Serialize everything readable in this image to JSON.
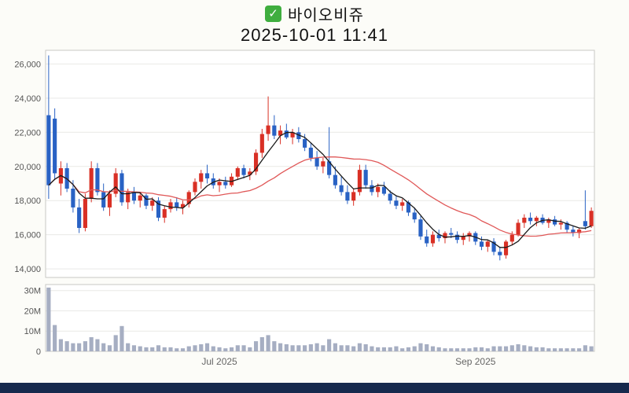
{
  "header": {
    "check_icon": "✓",
    "title": "바이오비쥬",
    "timestamp": "2025-10-01 11:41"
  },
  "chart_data": {
    "type": "candlestick",
    "title": "바이오비쥬",
    "timestamp": "2025-10-01 11:41",
    "ylim": [
      13500,
      26800
    ],
    "price_ticks": [
      {
        "label": "26,000",
        "value": 26000
      },
      {
        "label": "24,000",
        "value": 24000
      },
      {
        "label": "22,000",
        "value": 22000
      },
      {
        "label": "20,000",
        "value": 20000
      },
      {
        "label": "18,000",
        "value": 18000
      },
      {
        "label": "16,000",
        "value": 16000
      },
      {
        "label": "14,000",
        "value": 14000
      }
    ],
    "volume_ticks": [
      {
        "label": "30M",
        "value": 30
      },
      {
        "label": "20M",
        "value": 20
      },
      {
        "label": "10M",
        "value": 10
      },
      {
        "label": "0",
        "value": 0
      }
    ],
    "volume_max": 33,
    "x_ticks": [
      {
        "label": "Jul 2025",
        "index": 28
      },
      {
        "label": "Sep 2025",
        "index": 70
      }
    ],
    "ma_short_period": 5,
    "ma_long_period": 20,
    "colors": {
      "up": "#d93025",
      "down": "#2962c4",
      "ma_short": "#1a1a1a",
      "ma_long": "#e05858",
      "volume_bar": "#a6aec2",
      "grid": "#e9e9e6",
      "spine": "#c8c8c4",
      "tick_text": "#555555"
    },
    "candles": [
      [
        23000,
        26500,
        18100,
        18900,
        31.5
      ],
      [
        22800,
        23400,
        19200,
        19600,
        13
      ],
      [
        19000,
        20300,
        18300,
        19900,
        6
      ],
      [
        19900,
        20200,
        18500,
        18700,
        5
      ],
      [
        18700,
        19200,
        17300,
        17600,
        4
      ],
      [
        17600,
        18100,
        16100,
        16400,
        4
      ],
      [
        16400,
        18400,
        16200,
        18100,
        5
      ],
      [
        18100,
        20300,
        17900,
        19900,
        7
      ],
      [
        19900,
        20200,
        18300,
        18500,
        6
      ],
      [
        18500,
        19000,
        17400,
        17600,
        4
      ],
      [
        17600,
        18600,
        17100,
        18400,
        3
      ],
      [
        18400,
        19900,
        18200,
        19600,
        8
      ],
      [
        19600,
        19800,
        17700,
        17900,
        12.5
      ],
      [
        17900,
        18700,
        17500,
        18500,
        4
      ],
      [
        18500,
        18800,
        17800,
        18000,
        3
      ],
      [
        18000,
        18500,
        17600,
        18300,
        2.5
      ],
      [
        18300,
        18400,
        17500,
        17700,
        2
      ],
      [
        17700,
        18200,
        17400,
        18000,
        2
      ],
      [
        18000,
        18200,
        16800,
        17000,
        3
      ],
      [
        17000,
        17700,
        16700,
        17500,
        2
      ],
      [
        17500,
        18100,
        17300,
        17900,
        2
      ],
      [
        17900,
        18200,
        17400,
        17600,
        1.5
      ],
      [
        17600,
        18000,
        17200,
        17800,
        1.5
      ],
      [
        17800,
        18600,
        17600,
        18500,
        2.5
      ],
      [
        18500,
        19300,
        18300,
        19100,
        3
      ],
      [
        19100,
        19800,
        18700,
        19600,
        3.5
      ],
      [
        19600,
        20100,
        19000,
        19300,
        4
      ],
      [
        19300,
        19600,
        18700,
        18900,
        2.5
      ],
      [
        18900,
        19300,
        18500,
        19100,
        2
      ],
      [
        19100,
        19400,
        18700,
        18900,
        1.5
      ],
      [
        18900,
        19600,
        18800,
        19400,
        2
      ],
      [
        19400,
        20000,
        19200,
        19900,
        3
      ],
      [
        19900,
        20100,
        19300,
        19500,
        3
      ],
      [
        19500,
        19900,
        19200,
        19700,
        2
      ],
      [
        19700,
        21000,
        19500,
        20800,
        5
      ],
      [
        20800,
        22200,
        20500,
        21900,
        7
      ],
      [
        21900,
        24100,
        21500,
        22400,
        8
      ],
      [
        22400,
        23000,
        21600,
        21800,
        5
      ],
      [
        21800,
        22400,
        21300,
        22100,
        4
      ],
      [
        22100,
        22500,
        21600,
        21700,
        3.5
      ],
      [
        21700,
        22200,
        21300,
        22000,
        3
      ],
      [
        22000,
        22300,
        21400,
        21600,
        3
      ],
      [
        21600,
        21900,
        20900,
        21100,
        3
      ],
      [
        21100,
        21400,
        20300,
        20500,
        3.5
      ],
      [
        20500,
        20900,
        19800,
        20000,
        4
      ],
      [
        20000,
        20500,
        19600,
        20300,
        3
      ],
      [
        20300,
        22300,
        19300,
        19500,
        6
      ],
      [
        19500,
        20000,
        18700,
        18900,
        4
      ],
      [
        18900,
        19400,
        18300,
        18500,
        3
      ],
      [
        18500,
        18900,
        17800,
        18000,
        3
      ],
      [
        18000,
        18700,
        17700,
        18500,
        2.5
      ],
      [
        18500,
        20100,
        18300,
        19800,
        4
      ],
      [
        19800,
        20100,
        18700,
        18900,
        3.5
      ],
      [
        18900,
        19200,
        18300,
        18500,
        2.5
      ],
      [
        18500,
        19000,
        18200,
        18800,
        2
      ],
      [
        18800,
        19100,
        18300,
        18400,
        2
      ],
      [
        18400,
        18600,
        17800,
        18000,
        2
      ],
      [
        18000,
        18300,
        17500,
        17700,
        2.5
      ],
      [
        17700,
        18100,
        17400,
        17900,
        1.5
      ],
      [
        17900,
        18000,
        17100,
        17300,
        2
      ],
      [
        17300,
        17600,
        16700,
        16900,
        2.5
      ],
      [
        16900,
        17100,
        15700,
        15900,
        4
      ],
      [
        15900,
        16300,
        15300,
        15500,
        3.5
      ],
      [
        15500,
        16200,
        15300,
        16000,
        2.5
      ],
      [
        16000,
        16300,
        15600,
        15800,
        2
      ],
      [
        15800,
        16200,
        15500,
        16100,
        1.5
      ],
      [
        16100,
        16400,
        15800,
        16000,
        1.5
      ],
      [
        16000,
        16200,
        15500,
        15700,
        1.5
      ],
      [
        15700,
        16100,
        15400,
        15900,
        1.5
      ],
      [
        15900,
        16200,
        15600,
        16100,
        1.5
      ],
      [
        16100,
        16200,
        15400,
        15600,
        2
      ],
      [
        15600,
        15900,
        15100,
        15300,
        2
      ],
      [
        15300,
        15700,
        15000,
        15600,
        1.5
      ],
      [
        15600,
        15800,
        14800,
        15000,
        2.5
      ],
      [
        15000,
        15300,
        14500,
        14800,
        2.5
      ],
      [
        14800,
        15700,
        14600,
        15600,
        2.5
      ],
      [
        15600,
        16200,
        15400,
        16000,
        3
      ],
      [
        16000,
        16900,
        15900,
        16700,
        3.5
      ],
      [
        16700,
        17200,
        16400,
        17000,
        3
      ],
      [
        17000,
        17300,
        16600,
        16800,
        2.5
      ],
      [
        16800,
        17100,
        16500,
        17000,
        2
      ],
      [
        17000,
        17200,
        16600,
        16700,
        2
      ],
      [
        16700,
        17000,
        16400,
        16900,
        1.5
      ],
      [
        16900,
        17100,
        16500,
        16600,
        1.5
      ],
      [
        16600,
        16900,
        16300,
        16700,
        1.5
      ],
      [
        16700,
        16800,
        16100,
        16300,
        1.5
      ],
      [
        16300,
        16500,
        15900,
        16100,
        1.5
      ],
      [
        16100,
        16400,
        15800,
        16300,
        1.5
      ],
      [
        16800,
        18600,
        16300,
        16500,
        3
      ],
      [
        16500,
        17600,
        16400,
        17400,
        2.5
      ]
    ]
  }
}
